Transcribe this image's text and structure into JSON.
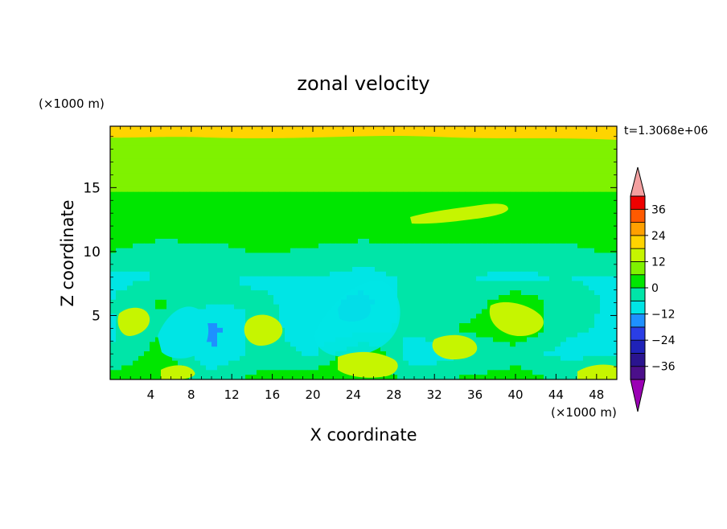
{
  "chart_data": {
    "type": "heatmap",
    "title": "zonal velocity",
    "xlabel": "X coordinate",
    "ylabel": "Z coordinate",
    "x_unit": "(×1000 m)",
    "y_unit": "(×1000 m)",
    "time_label": "t=1.3068e+06",
    "xlim": [
      0,
      50
    ],
    "ylim": [
      0,
      19.8
    ],
    "x_ticks": [
      "4",
      "8",
      "12",
      "16",
      "20",
      "24",
      "28",
      "32",
      "36",
      "40",
      "44",
      "48"
    ],
    "x_tick_values": [
      4,
      8,
      12,
      16,
      20,
      24,
      28,
      32,
      36,
      40,
      44,
      48
    ],
    "y_ticks": [
      "5",
      "10",
      "15"
    ],
    "y_tick_values": [
      5,
      10,
      15
    ],
    "colorbar": {
      "levels": [
        -42,
        -36,
        -30,
        -24,
        -18,
        -12,
        -6,
        0,
        6,
        12,
        18,
        24,
        30,
        36,
        42
      ],
      "tick_labels": [
        "−36",
        "−24",
        "−12",
        "0",
        "12",
        "24",
        "36"
      ],
      "tick_values": [
        -36,
        -24,
        -12,
        0,
        12,
        24,
        36
      ],
      "colors": [
        "#4b0f8a",
        "#2a148f",
        "#1f22b8",
        "#2a3ee6",
        "#1e90ff",
        "#00e5e5",
        "#00e5a8",
        "#00e600",
        "#7ff200",
        "#c6f500",
        "#ffd400",
        "#ffa000",
        "#ff5a00",
        "#ee0000"
      ],
      "under_color": "#9a00b4",
      "over_color": "#f4a0a0"
    },
    "field": {
      "x": [
        0,
        5,
        10,
        15,
        20,
        25,
        30,
        35,
        40,
        45,
        50
      ],
      "z": [
        0,
        2,
        4,
        6,
        8,
        10,
        12,
        14,
        16,
        18,
        19.8
      ],
      "u": [
        [
          3,
          6,
          -3,
          2,
          4,
          5,
          -2,
          1,
          3,
          -1,
          4
        ],
        [
          -6,
          3,
          -12,
          -3,
          -7,
          8,
          -11,
          -6,
          -3,
          -8,
          -6
        ],
        [
          -7,
          -1,
          -14,
          -3,
          -11,
          -9,
          -4,
          1,
          6,
          -5,
          -7
        ],
        [
          -6,
          1,
          -6,
          -5,
          -9,
          -15,
          -1,
          -5,
          6,
          -4,
          -7
        ],
        [
          -8,
          -6,
          -5,
          -7,
          -6,
          -8,
          -5,
          -6,
          -7,
          -6,
          -7
        ],
        [
          0,
          -3,
          -3,
          1,
          -1,
          -3,
          -2,
          -3,
          -3,
          -2,
          1
        ],
        [
          5,
          4,
          5,
          5,
          4,
          4,
          5,
          5,
          5,
          5,
          5
        ],
        [
          5,
          5,
          5,
          5,
          5,
          5,
          5,
          5,
          5,
          5,
          5
        ],
        [
          8,
          8,
          8,
          8,
          8,
          8,
          8,
          8,
          8,
          8,
          8
        ],
        [
          8,
          8,
          8,
          8,
          8,
          8,
          8,
          8,
          8,
          8,
          8
        ],
        [
          12,
          12,
          12,
          12,
          12,
          12,
          12,
          12,
          12,
          12,
          12
        ]
      ]
    }
  }
}
